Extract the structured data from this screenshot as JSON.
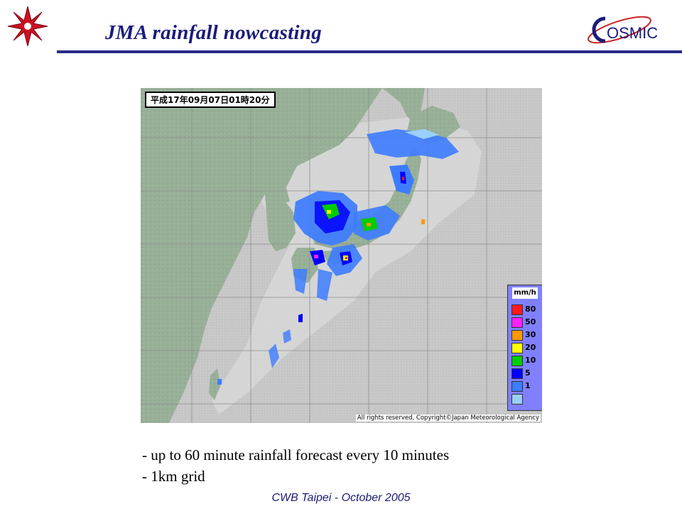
{
  "header": {
    "title": "JMA rainfall nowcasting",
    "left_logo_icon": "star-burst-logo-icon",
    "right_logo_text": "OSMIC",
    "accent_color": "#2a2a8e",
    "title_color": "#1b1b7a"
  },
  "map": {
    "timestamp": "平成17年09月07日01時20分",
    "copyright": "All rights reserved, Copyright©Japan Meteorological Agency",
    "legend": {
      "unit": "mm/h",
      "items": [
        {
          "label": "80",
          "color": "#ff1a1a"
        },
        {
          "label": "50",
          "color": "#ff20ff"
        },
        {
          "label": "30",
          "color": "#ff9900"
        },
        {
          "label": "20",
          "color": "#ffff00"
        },
        {
          "label": "10",
          "color": "#00cc00"
        },
        {
          "label": "5",
          "color": "#0000ff"
        },
        {
          "label": "1",
          "color": "#3d7cff"
        },
        {
          "label": "",
          "color": "#9ad0ff"
        }
      ]
    }
  },
  "bullets": [
    "- up to 60 minute rainfall forecast every 10 minutes",
    "- 1km grid"
  ],
  "footer": "CWB Taipei - October 2005"
}
